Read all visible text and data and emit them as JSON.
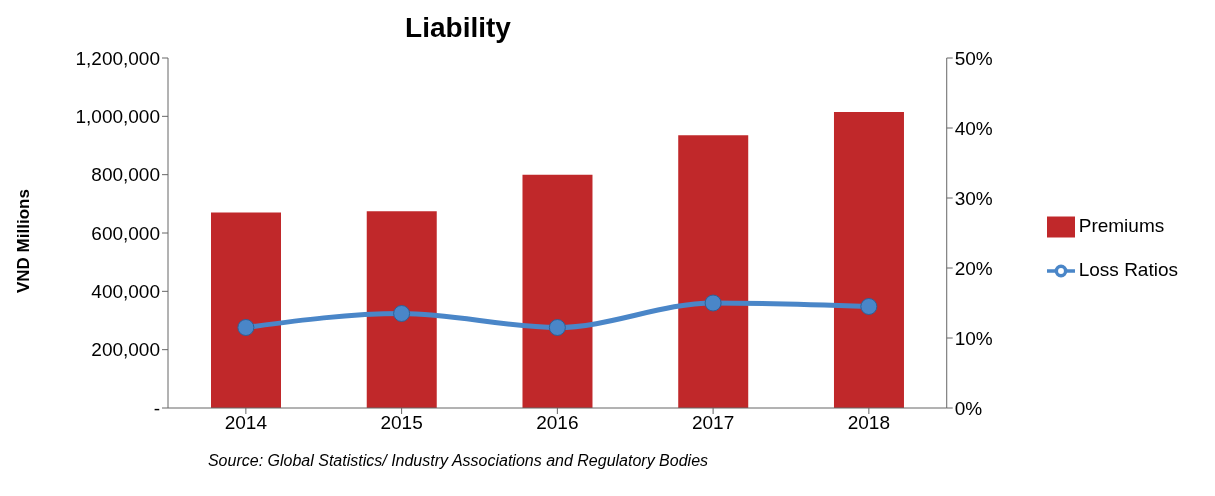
{
  "chart_data": {
    "type": "bar",
    "title": "Liability",
    "ylabel": "VND Millions",
    "categories": [
      "2014",
      "2015",
      "2016",
      "2017",
      "2018"
    ],
    "series": [
      {
        "name": "Premiums",
        "color": "#c0282a",
        "values": [
          670000,
          675000,
          800000,
          935000,
          1015000
        ]
      },
      {
        "name": "Loss Ratios",
        "type": "line",
        "axis": "y2",
        "color": "#4a86c8",
        "values": [
          11.5,
          13.5,
          11.5,
          15,
          14.5
        ]
      }
    ],
    "ylim": [
      0,
      1200000
    ],
    "yticks": [
      {
        "value": 0,
        "label": "-"
      },
      {
        "value": 200000,
        "label": "200,000"
      },
      {
        "value": 400000,
        "label": "400,000"
      },
      {
        "value": 600000,
        "label": "600,000"
      },
      {
        "value": 800000,
        "label": "800,000"
      },
      {
        "value": 1000000,
        "label": "1,000,000"
      },
      {
        "value": 1200000,
        "label": "1,200,000"
      }
    ],
    "y2lim": [
      0,
      50
    ],
    "y2ticks": [
      {
        "value": 0,
        "label": "0%"
      },
      {
        "value": 10,
        "label": "10%"
      },
      {
        "value": 20,
        "label": "20%"
      },
      {
        "value": 30,
        "label": "30%"
      },
      {
        "value": 40,
        "label": "40%"
      },
      {
        "value": 50,
        "label": "50%"
      }
    ],
    "legend": "right",
    "marker": "circle",
    "line_style": "solid",
    "grid": false,
    "annotations": [
      "Source: Global Statistics/ Industry Associations and Regulatory Bodies"
    ]
  }
}
